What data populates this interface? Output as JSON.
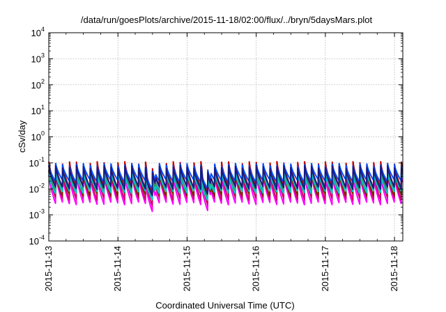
{
  "chart_data": {
    "type": "line",
    "title": "/data/run/goesPlots/archive/2015-11-18/02:00/flux/../bryn/5daysMars.plot",
    "xlabel": "Coordinated Universal Time (UTC)",
    "ylabel": "cSv/day",
    "x_tick_labels": [
      "2015-11-13",
      "2015-11-14",
      "2015-11-15",
      "2015-11-16",
      "2015-11-17",
      "2015-11-18"
    ],
    "x_range_days": [
      0,
      5.12
    ],
    "y_scale": "log",
    "ylim": [
      0.0001,
      10000
    ],
    "y_ticks": [
      {
        "base": "10",
        "exp": "4",
        "value": 10000
      },
      {
        "base": "10",
        "exp": "3",
        "value": 1000
      },
      {
        "base": "10",
        "exp": "2",
        "value": 100
      },
      {
        "base": "10",
        "exp": "1",
        "value": 10
      },
      {
        "base": "10",
        "exp": "0",
        "value": 1
      },
      {
        "base": "10",
        "exp": "-1",
        "value": 0.1
      },
      {
        "base": "10",
        "exp": "-2",
        "value": 0.01
      },
      {
        "base": "10",
        "exp": "-3",
        "value": 0.001
      },
      {
        "base": "10",
        "exp": "-4",
        "value": 0.0001
      }
    ],
    "grid": true,
    "sawtooth_period_days": 0.1,
    "anomalies_days": [
      1.48,
      2.28
    ],
    "series": [
      {
        "color": "#ff00ff",
        "peak": 0.035,
        "trough": 0.0028
      },
      {
        "color": "#d4006f",
        "peak": 0.05,
        "trough": 0.0042
      },
      {
        "color": "#c00000",
        "peak": 0.1,
        "trough": 0.012
      },
      {
        "color": "#7a2a00",
        "peak": 0.045,
        "trough": 0.006
      },
      {
        "color": "#2e8b57",
        "peak": 0.06,
        "trough": 0.009
      },
      {
        "color": "#00c8c8",
        "peak": 0.04,
        "trough": 0.0075
      },
      {
        "color": "#0050ff",
        "peak": 0.085,
        "trough": 0.02
      },
      {
        "color": "#1a1a80",
        "peak": 0.07,
        "trough": 0.011
      }
    ]
  }
}
